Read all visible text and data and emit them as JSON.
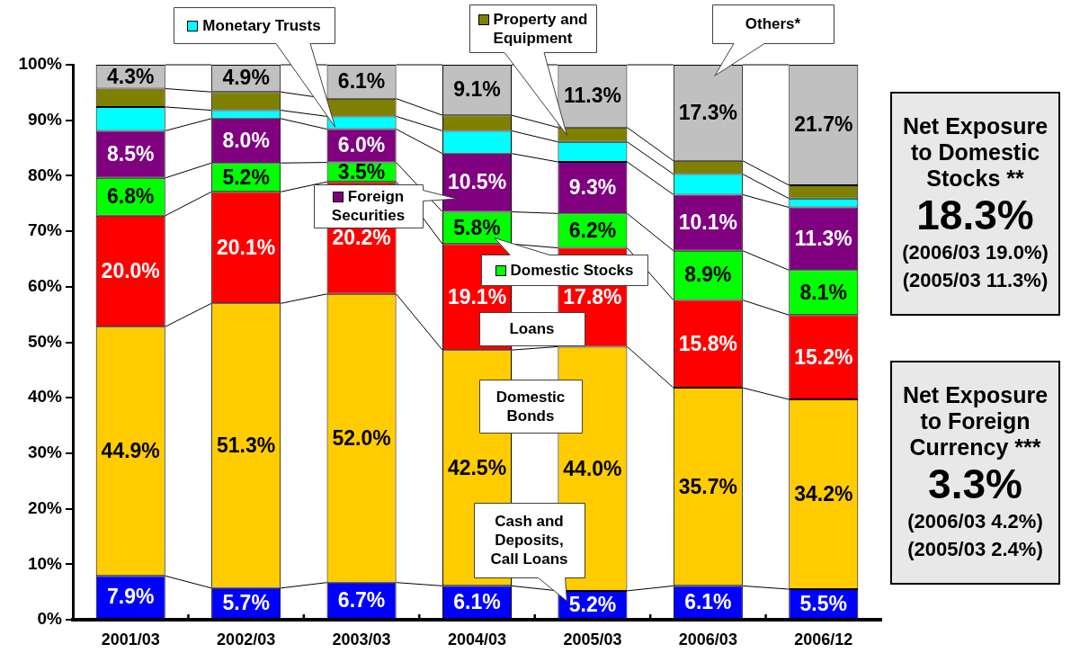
{
  "chart_data": {
    "type": "bar",
    "stacked": true,
    "legend": "top",
    "categories": [
      "2001/03",
      "2002/03",
      "2003/03",
      "2004/03",
      "2005/03",
      "2006/03",
      "2006/12"
    ],
    "ylim": [
      0,
      100
    ],
    "yticks": [
      {
        "value": 0,
        "label": "0%"
      },
      {
        "value": 10,
        "label": "10%"
      },
      {
        "value": 20,
        "label": "20%"
      },
      {
        "value": 30,
        "label": "30%"
      },
      {
        "value": 40,
        "label": "40%"
      },
      {
        "value": 50,
        "label": "50%"
      },
      {
        "value": 60,
        "label": "60%"
      },
      {
        "value": 70,
        "label": "70%"
      },
      {
        "value": 80,
        "label": "80%"
      },
      {
        "value": 90,
        "label": "90%"
      },
      {
        "value": 100,
        "label": "100%"
      }
    ],
    "series": [
      {
        "name": "Cash and Deposits, Call Loans",
        "color": "#0000ff",
        "values": [
          7.9,
          5.7,
          6.7,
          6.1,
          5.2,
          6.1,
          5.5
        ],
        "value_labels": [
          "7.9%",
          "5.7%",
          "6.7%",
          "6.1%",
          "5.2%",
          "6.1%",
          "5.5%"
        ]
      },
      {
        "name": "Domestic Bonds",
        "color": "#ffcc00",
        "values": [
          44.9,
          51.3,
          52.0,
          42.5,
          44.0,
          35.7,
          34.2
        ],
        "value_labels": [
          "44.9%",
          "51.3%",
          "52.0%",
          "42.5%",
          "44.0%",
          "35.7%",
          "34.2%"
        ]
      },
      {
        "name": "Loans",
        "color": "#ff0000",
        "values": [
          20.0,
          20.1,
          20.2,
          19.1,
          17.8,
          15.8,
          15.2
        ],
        "value_labels": [
          "20.0%",
          "20.1%",
          "20.2%",
          "19.1%",
          "17.8%",
          "15.8%",
          "15.2%"
        ]
      },
      {
        "name": "Domestic Stocks",
        "color": "#00ff00",
        "values": [
          6.8,
          5.2,
          3.5,
          5.8,
          6.2,
          8.9,
          8.1
        ],
        "value_labels": [
          "6.8%",
          "5.2%",
          "3.5%",
          "5.8%",
          "6.2%",
          "8.9%",
          "8.1%"
        ]
      },
      {
        "name": "Foreign Securities",
        "color": "#800080",
        "values": [
          8.5,
          8.0,
          6.0,
          10.5,
          9.3,
          10.1,
          11.3
        ],
        "value_labels": [
          "8.5%",
          "8.0%",
          "6.0%",
          "10.5%",
          "9.3%",
          "10.1%",
          "11.3%"
        ]
      },
      {
        "name": "Monetary Trusts",
        "color": "#00ffff",
        "values": [
          4.3,
          1.5,
          2.3,
          4.1,
          3.6,
          3.7,
          1.6
        ]
      },
      {
        "name": "Property and Equipment",
        "color": "#808000",
        "values": [
          3.3,
          3.3,
          3.2,
          2.8,
          2.6,
          2.4,
          2.4
        ]
      },
      {
        "name": "Others*",
        "color": "#c0c0c0",
        "values": [
          4.3,
          4.9,
          6.1,
          9.1,
          11.3,
          17.3,
          21.7
        ],
        "value_labels": [
          "4.3%",
          "4.9%",
          "6.1%",
          "9.1%",
          "11.3%",
          "17.3%",
          "21.7%"
        ]
      }
    ],
    "annotations": [
      "Net Exposure to Domestic Stocks **\n18.3%\n(2006/03 19.0%)\n(2005/03 11.3%)",
      "Net Exposure to Foreign Currency ***\n3.3%\n(2006/03 4.2%)\n(2005/03 2.4%)"
    ]
  }
}
